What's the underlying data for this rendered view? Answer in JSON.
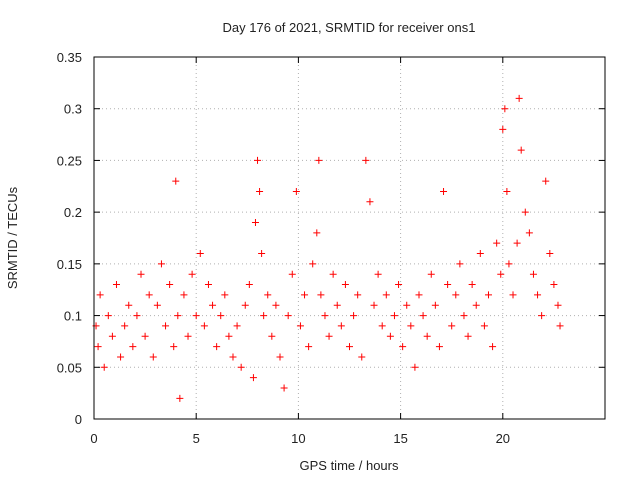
{
  "chart_data": {
    "type": "scatter",
    "title": "Day 176 of 2021, SRMTID for receiver ons1",
    "xlabel": "GPS time / hours",
    "ylabel": "SRMTID / TECUs",
    "xlim": [
      0,
      25
    ],
    "ylim": [
      0,
      0.35
    ],
    "x_ticks": [
      0,
      5,
      10,
      15,
      20
    ],
    "x_tick_labels": [
      "0",
      "5",
      "10",
      "15",
      "20"
    ],
    "y_ticks": [
      0,
      0.05,
      0.1,
      0.15,
      0.2,
      0.25,
      0.3,
      0.35
    ],
    "y_tick_labels": [
      "0",
      "0.05",
      "0.1",
      "0.15",
      "0.2",
      "0.25",
      "0.3",
      "0.35"
    ],
    "grid": true,
    "marker": "+",
    "color": "#ff0000",
    "series": [
      {
        "name": "SRMTID",
        "x": [
          0.1,
          0.2,
          0.3,
          0.5,
          0.7,
          0.9,
          1.1,
          1.3,
          1.5,
          1.7,
          1.9,
          2.1,
          2.3,
          2.5,
          2.7,
          2.9,
          3.1,
          3.3,
          3.5,
          3.7,
          3.9,
          4.0,
          4.1,
          4.2,
          4.4,
          4.6,
          4.8,
          5.0,
          5.2,
          5.4,
          5.6,
          5.8,
          6.0,
          6.2,
          6.4,
          6.6,
          6.8,
          7.0,
          7.2,
          7.4,
          7.6,
          7.8,
          7.9,
          8.0,
          8.1,
          8.2,
          8.3,
          8.5,
          8.7,
          8.9,
          9.1,
          9.3,
          9.5,
          9.7,
          9.9,
          10.1,
          10.3,
          10.5,
          10.7,
          10.9,
          11.0,
          11.1,
          11.3,
          11.5,
          11.7,
          11.9,
          12.1,
          12.3,
          12.5,
          12.7,
          12.9,
          13.1,
          13.3,
          13.5,
          13.7,
          13.9,
          14.1,
          14.3,
          14.5,
          14.7,
          14.9,
          15.1,
          15.3,
          15.5,
          15.7,
          15.9,
          16.1,
          16.3,
          16.5,
          16.7,
          16.9,
          17.1,
          17.3,
          17.5,
          17.7,
          17.9,
          18.1,
          18.3,
          18.5,
          18.7,
          18.9,
          19.1,
          19.3,
          19.5,
          19.7,
          19.9,
          20.0,
          20.1,
          20.2,
          20.3,
          20.5,
          20.7,
          20.8,
          20.9,
          21.1,
          21.3,
          21.5,
          21.7,
          21.9,
          22.1,
          22.3,
          22.5,
          22.7,
          22.8
        ],
        "values": [
          0.09,
          0.07,
          0.12,
          0.05,
          0.1,
          0.08,
          0.13,
          0.06,
          0.09,
          0.11,
          0.07,
          0.1,
          0.14,
          0.08,
          0.12,
          0.06,
          0.11,
          0.15,
          0.09,
          0.13,
          0.07,
          0.23,
          0.1,
          0.02,
          0.12,
          0.08,
          0.14,
          0.1,
          0.16,
          0.09,
          0.13,
          0.11,
          0.07,
          0.1,
          0.12,
          0.08,
          0.06,
          0.09,
          0.05,
          0.11,
          0.13,
          0.04,
          0.19,
          0.25,
          0.22,
          0.16,
          0.1,
          0.12,
          0.08,
          0.11,
          0.06,
          0.03,
          0.1,
          0.14,
          0.22,
          0.09,
          0.12,
          0.07,
          0.15,
          0.18,
          0.25,
          0.12,
          0.1,
          0.08,
          0.14,
          0.11,
          0.09,
          0.13,
          0.07,
          0.1,
          0.12,
          0.06,
          0.25,
          0.21,
          0.11,
          0.14,
          0.09,
          0.12,
          0.08,
          0.1,
          0.13,
          0.07,
          0.11,
          0.09,
          0.05,
          0.12,
          0.1,
          0.08,
          0.14,
          0.11,
          0.07,
          0.22,
          0.13,
          0.09,
          0.12,
          0.15,
          0.1,
          0.08,
          0.13,
          0.11,
          0.16,
          0.09,
          0.12,
          0.07,
          0.17,
          0.14,
          0.28,
          0.3,
          0.22,
          0.15,
          0.12,
          0.17,
          0.31,
          0.26,
          0.2,
          0.18,
          0.14,
          0.12,
          0.1,
          0.23,
          0.16,
          0.13,
          0.11,
          0.09
        ]
      }
    ]
  }
}
